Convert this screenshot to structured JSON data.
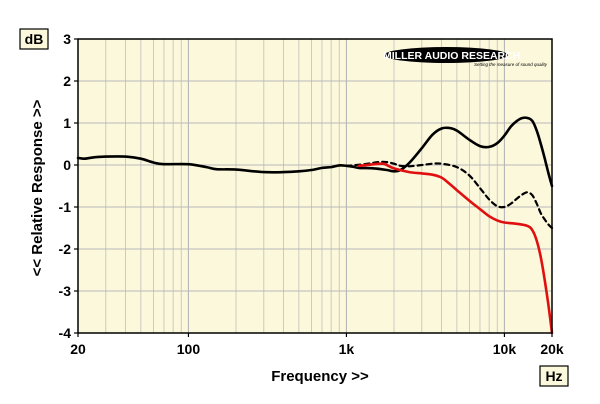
{
  "chart_data": {
    "type": "line",
    "xscale": "log",
    "xlim": [
      20,
      20000
    ],
    "ylim": [
      -4,
      3
    ],
    "xlabel": "Frequency >>",
    "ylabel": "<< Relative Response >>",
    "y_unit": "dB",
    "x_unit": "Hz",
    "x_ticks": [
      {
        "value": 20,
        "label": "20"
      },
      {
        "value": 100,
        "label": "100"
      },
      {
        "value": 1000,
        "label": "1k"
      },
      {
        "value": 10000,
        "label": "10k"
      },
      {
        "value": 20000,
        "label": "20k"
      }
    ],
    "y_ticks": [
      3,
      2,
      1,
      0,
      -1,
      -2,
      -3,
      -4
    ],
    "grid": true,
    "logo": {
      "title": "MILLER AUDIO RESEARCH",
      "tagline": "Setting the measure of sound quality"
    },
    "colors": {
      "plot_background": "#fbf8db",
      "grid": "#b8b8b8",
      "black_series": "#000000",
      "red_series": "#e01010"
    },
    "series": [
      {
        "style": "solid",
        "color": "#000000",
        "points": [
          [
            20,
            0.17
          ],
          [
            22,
            0.15
          ],
          [
            25,
            0.18
          ],
          [
            30,
            0.2
          ],
          [
            40,
            0.2
          ],
          [
            50,
            0.15
          ],
          [
            60,
            0.06
          ],
          [
            70,
            0.02
          ],
          [
            100,
            0.02
          ],
          [
            130,
            -0.05
          ],
          [
            150,
            -0.1
          ],
          [
            200,
            -0.11
          ],
          [
            300,
            -0.17
          ],
          [
            400,
            -0.17
          ],
          [
            500,
            -0.15
          ],
          [
            600,
            -0.12
          ],
          [
            700,
            -0.07
          ],
          [
            800,
            -0.05
          ],
          [
            900,
            -0.01
          ],
          [
            1000,
            -0.02
          ],
          [
            1100,
            -0.04
          ],
          [
            1200,
            -0.07
          ],
          [
            1500,
            -0.08
          ],
          [
            1800,
            -0.12
          ],
          [
            2000,
            -0.15
          ],
          [
            2200,
            -0.12
          ],
          [
            2500,
            0.05
          ],
          [
            3000,
            0.4
          ],
          [
            3500,
            0.72
          ],
          [
            4000,
            0.87
          ],
          [
            4500,
            0.88
          ],
          [
            5000,
            0.82
          ],
          [
            6000,
            0.6
          ],
          [
            7000,
            0.45
          ],
          [
            8000,
            0.43
          ],
          [
            9000,
            0.52
          ],
          [
            10000,
            0.7
          ],
          [
            11000,
            0.92
          ],
          [
            12000,
            1.05
          ],
          [
            13000,
            1.12
          ],
          [
            14000,
            1.12
          ],
          [
            15000,
            1.05
          ],
          [
            16000,
            0.82
          ],
          [
            17000,
            0.5
          ],
          [
            18000,
            0.15
          ],
          [
            19000,
            -0.2
          ],
          [
            20000,
            -0.5
          ]
        ]
      },
      {
        "style": "dashed",
        "color": "#000000",
        "points": [
          [
            1000,
            -0.02
          ],
          [
            1300,
            0.02
          ],
          [
            1600,
            0.07
          ],
          [
            1800,
            0.07
          ],
          [
            2000,
            0.03
          ],
          [
            2200,
            -0.02
          ],
          [
            2500,
            -0.03
          ],
          [
            3000,
            0.0
          ],
          [
            3500,
            0.03
          ],
          [
            4000,
            0.03
          ],
          [
            5000,
            -0.05
          ],
          [
            6000,
            -0.25
          ],
          [
            7000,
            -0.55
          ],
          [
            8000,
            -0.82
          ],
          [
            9000,
            -0.98
          ],
          [
            10000,
            -1.0
          ],
          [
            11000,
            -0.92
          ],
          [
            12000,
            -0.8
          ],
          [
            13000,
            -0.7
          ],
          [
            14000,
            -0.65
          ],
          [
            15000,
            -0.72
          ],
          [
            16000,
            -0.92
          ],
          [
            17000,
            -1.15
          ],
          [
            18000,
            -1.3
          ],
          [
            19000,
            -1.42
          ],
          [
            20000,
            -1.5
          ]
        ]
      },
      {
        "style": "solid",
        "color": "#e01010",
        "points": [
          [
            1200,
            -0.02
          ],
          [
            1500,
            0.02
          ],
          [
            1700,
            0.03
          ],
          [
            1800,
            0.0
          ],
          [
            2000,
            -0.08
          ],
          [
            2500,
            -0.17
          ],
          [
            3000,
            -0.2
          ],
          [
            3500,
            -0.23
          ],
          [
            4000,
            -0.3
          ],
          [
            4500,
            -0.45
          ],
          [
            5000,
            -0.6
          ],
          [
            6000,
            -0.85
          ],
          [
            7000,
            -1.05
          ],
          [
            8000,
            -1.22
          ],
          [
            9000,
            -1.32
          ],
          [
            10000,
            -1.37
          ],
          [
            12000,
            -1.4
          ],
          [
            14000,
            -1.45
          ],
          [
            15000,
            -1.55
          ],
          [
            16000,
            -1.8
          ],
          [
            17000,
            -2.2
          ],
          [
            18000,
            -2.75
          ],
          [
            19000,
            -3.35
          ],
          [
            20000,
            -4.0
          ]
        ]
      }
    ]
  }
}
